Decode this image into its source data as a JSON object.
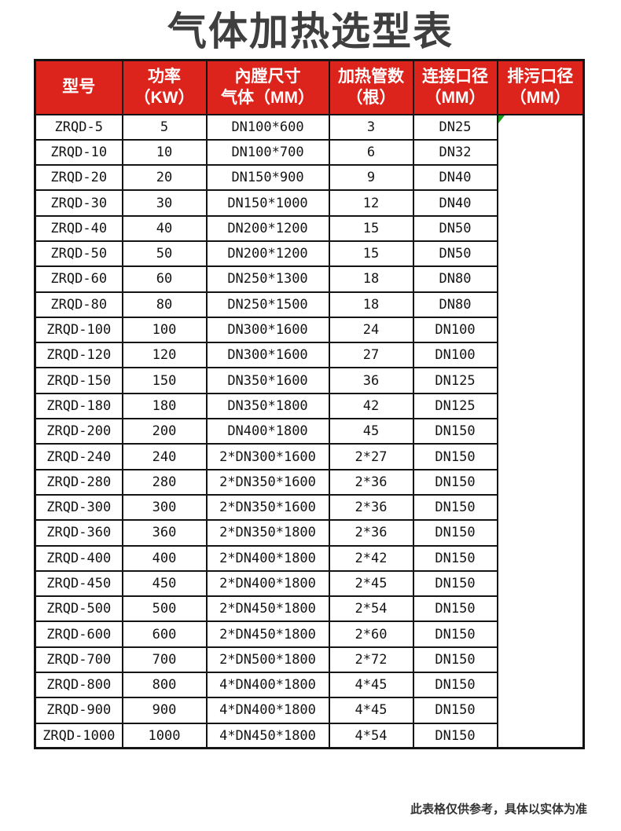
{
  "page": {
    "title": "气体加热选型表",
    "footnote": "此表格仅供参考，具体以实体为准"
  },
  "colors": {
    "header_bg": "#dc241c",
    "header_text": "#ffffff",
    "border": "#141414",
    "triangle_green": "#1f9b1f",
    "title_color": "#3f3f3f"
  },
  "table": {
    "columns": [
      {
        "id": "model",
        "lines": [
          "型号"
        ]
      },
      {
        "id": "power",
        "lines": [
          "功率",
          "（KW）"
        ]
      },
      {
        "id": "chamber",
        "lines": [
          "內膛尺寸",
          "气体（MM）"
        ]
      },
      {
        "id": "tubes",
        "lines": [
          "加热管数",
          "（根）"
        ]
      },
      {
        "id": "connection",
        "lines": [
          "连接口径",
          "（MM）"
        ]
      },
      {
        "id": "drain",
        "lines": [
          "排污口径",
          "（MM）"
        ]
      }
    ],
    "rows": [
      [
        "ZRQD-5",
        "5",
        "DN100*600",
        "3",
        "DN25"
      ],
      [
        "ZRQD-10",
        "10",
        "DN100*700",
        "6",
        "DN32"
      ],
      [
        "ZRQD-20",
        "20",
        "DN150*900",
        "9",
        "DN40"
      ],
      [
        "ZRQD-30",
        "30",
        "DN150*1000",
        "12",
        "DN40"
      ],
      [
        "ZRQD-40",
        "40",
        "DN200*1200",
        "15",
        "DN50"
      ],
      [
        "ZRQD-50",
        "50",
        "DN200*1200",
        "15",
        "DN50"
      ],
      [
        "ZRQD-60",
        "60",
        "DN250*1300",
        "18",
        "DN80"
      ],
      [
        "ZRQD-80",
        "80",
        "DN250*1500",
        "18",
        "DN80"
      ],
      [
        "ZRQD-100",
        "100",
        "DN300*1600",
        "24",
        "DN100"
      ],
      [
        "ZRQD-120",
        "120",
        "DN300*1600",
        "27",
        "DN100"
      ],
      [
        "ZRQD-150",
        "150",
        "DN350*1600",
        "36",
        "DN125"
      ],
      [
        "ZRQD-180",
        "180",
        "DN350*1800",
        "42",
        "DN125"
      ],
      [
        "ZRQD-200",
        "200",
        "DN400*1800",
        "45",
        "DN150"
      ],
      [
        "ZRQD-240",
        "240",
        "2*DN300*1600",
        "2*27",
        "DN150"
      ],
      [
        "ZRQD-280",
        "280",
        "2*DN350*1600",
        "2*36",
        "DN150"
      ],
      [
        "ZRQD-300",
        "300",
        "2*DN350*1600",
        "2*36",
        "DN150"
      ],
      [
        "ZRQD-360",
        "360",
        "2*DN350*1800",
        "2*36",
        "DN150"
      ],
      [
        "ZRQD-400",
        "400",
        "2*DN400*1800",
        "2*42",
        "DN150"
      ],
      [
        "ZRQD-450",
        "450",
        "2*DN400*1800",
        "2*45",
        "DN150"
      ],
      [
        "ZRQD-500",
        "500",
        "2*DN450*1800",
        "2*54",
        "DN150"
      ],
      [
        "ZRQD-600",
        "600",
        "2*DN450*1800",
        "2*60",
        "DN150"
      ],
      [
        "ZRQD-700",
        "700",
        "2*DN500*1800",
        "2*72",
        "DN150"
      ],
      [
        "ZRQD-800",
        "800",
        "4*DN400*1800",
        "4*45",
        "DN150"
      ],
      [
        "ZRQD-900",
        "900",
        "4*DN400*1800",
        "4*45",
        "DN150"
      ],
      [
        "ZRQD-1000",
        "1000",
        "4*DN450*1800",
        "4*54",
        "DN150"
      ]
    ],
    "drain_merged_value": ""
  }
}
